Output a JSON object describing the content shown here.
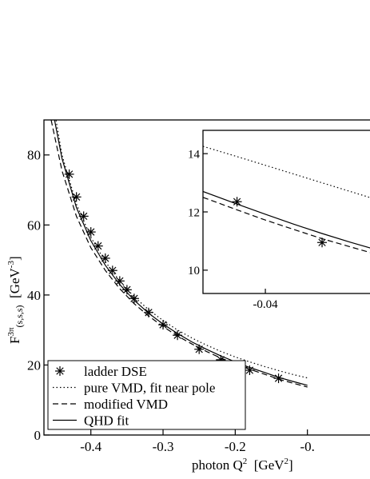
{
  "chart_data": [
    {
      "type": "line",
      "xlabel": {
        "main": "photon  Q",
        "sup": "2",
        "unit_prefix": "  [GeV",
        "unit_sup": "2",
        "unit_suffix": "]"
      },
      "ylabel": {
        "main": "F",
        "sup": "3π",
        "sub": "(s,s,s)",
        "unit_prefix": "  [GeV",
        "unit_sup": "-3",
        "unit_suffix": "]"
      },
      "xlim": [
        -0.465,
        -0.0
      ],
      "ylim": [
        0,
        90
      ],
      "x_ticks": [
        -0.4,
        -0.3,
        -0.2,
        -0.1
      ],
      "x_tick_labels": [
        "-0.4",
        "-0.3",
        "-0.2",
        "-0."
      ],
      "y_ticks": [
        0,
        20,
        40,
        60,
        80
      ],
      "y_tick_labels": [
        "0",
        "20",
        "40",
        "60",
        "80"
      ],
      "legend_position": "bottom-left",
      "series": [
        {
          "name": "ladder DSE",
          "style": "star",
          "x": [
            -0.43,
            -0.42,
            -0.41,
            -0.4,
            -0.39,
            -0.38,
            -0.37,
            -0.36,
            -0.35,
            -0.34,
            -0.32,
            -0.3,
            -0.28,
            -0.25,
            -0.22,
            -0.18,
            -0.14
          ],
          "y": [
            74.5,
            68.0,
            62.5,
            58.0,
            54.0,
            50.5,
            47.0,
            44.0,
            41.5,
            39.0,
            35.0,
            31.5,
            28.5,
            24.5,
            21.5,
            18.5,
            16.2
          ]
        },
        {
          "name": "pure VMD, fit near pole",
          "style": "dotted",
          "x": [
            -0.455,
            -0.44,
            -0.42,
            -0.4,
            -0.38,
            -0.36,
            -0.34,
            -0.32,
            -0.3,
            -0.28,
            -0.26,
            -0.24,
            -0.22,
            -0.2,
            -0.18,
            -0.16,
            -0.14,
            -0.12,
            -0.1
          ],
          "y": [
            98.0,
            80.0,
            66.0,
            56.5,
            49.5,
            44.0,
            39.5,
            35.8,
            32.7,
            30.0,
            27.7,
            25.7,
            23.9,
            22.3,
            20.9,
            19.6,
            18.4,
            17.3,
            16.3
          ]
        },
        {
          "name": "modified VMD",
          "style": "dashed",
          "x": [
            -0.455,
            -0.44,
            -0.42,
            -0.4,
            -0.38,
            -0.36,
            -0.34,
            -0.32,
            -0.3,
            -0.28,
            -0.26,
            -0.24,
            -0.22,
            -0.2,
            -0.18,
            -0.16,
            -0.14,
            -0.12,
            -0.1
          ],
          "y": [
            90.0,
            75.5,
            62.5,
            53.5,
            47.0,
            41.8,
            37.5,
            34.0,
            31.0,
            28.3,
            26.0,
            23.9,
            22.0,
            20.3,
            18.8,
            17.4,
            16.0,
            14.8,
            13.7
          ]
        },
        {
          "name": "QHD fit",
          "style": "solid",
          "x": [
            -0.455,
            -0.44,
            -0.42,
            -0.4,
            -0.38,
            -0.36,
            -0.34,
            -0.32,
            -0.3,
            -0.28,
            -0.26,
            -0.24,
            -0.22,
            -0.2,
            -0.18,
            -0.16,
            -0.14,
            -0.12,
            -0.1
          ],
          "y": [
            95.0,
            79.0,
            65.0,
            55.5,
            48.5,
            43.0,
            38.5,
            34.8,
            31.7,
            29.0,
            26.6,
            24.5,
            22.6,
            20.9,
            19.3,
            17.9,
            16.5,
            15.3,
            14.2
          ]
        }
      ]
    },
    {
      "type": "line",
      "inset": true,
      "xlim": [
        -0.062,
        -0.0
      ],
      "ylim": [
        9.2,
        14.8
      ],
      "x_ticks": [
        -0.04
      ],
      "x_tick_labels": [
        "-0.04"
      ],
      "y_ticks": [
        10,
        12,
        14
      ],
      "y_tick_labels": [
        "10",
        "12",
        "14"
      ],
      "series": [
        {
          "name": "ladder DSE",
          "style": "star",
          "x": [
            -0.05,
            -0.02
          ],
          "y": [
            12.35,
            10.95
          ]
        },
        {
          "name": "pure VMD, fit near pole",
          "style": "dotted",
          "x": [
            -0.062,
            -0.05,
            -0.04,
            -0.03,
            -0.02,
            -0.01,
            0.0
          ],
          "y": [
            14.25,
            13.9,
            13.6,
            13.3,
            13.0,
            12.7,
            12.4
          ]
        },
        {
          "name": "modified VMD",
          "style": "dashed",
          "x": [
            -0.062,
            -0.05,
            -0.04,
            -0.03,
            -0.02,
            -0.01,
            0.0
          ],
          "y": [
            12.5,
            12.07,
            11.72,
            11.4,
            11.08,
            10.8,
            10.52
          ]
        },
        {
          "name": "QHD fit",
          "style": "solid",
          "x": [
            -0.062,
            -0.05,
            -0.04,
            -0.03,
            -0.02,
            -0.01,
            0.0
          ],
          "y": [
            12.7,
            12.27,
            11.92,
            11.58,
            11.26,
            10.96,
            10.68
          ]
        }
      ]
    }
  ]
}
